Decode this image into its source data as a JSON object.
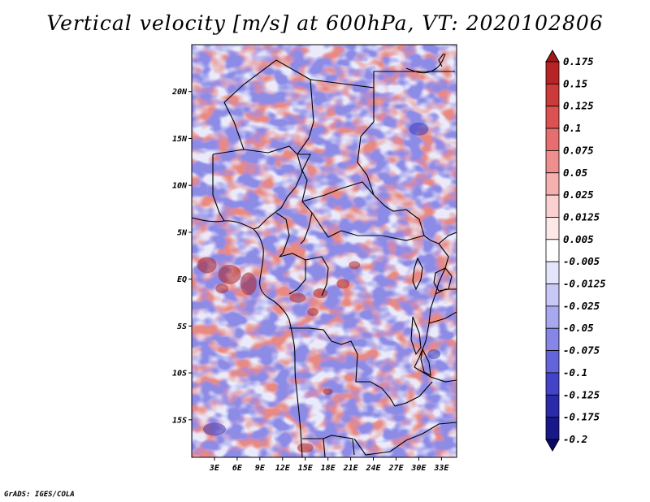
{
  "title": "Vertical velocity [m/s] at 600hPa, VT: 2020102806",
  "footer": "GrADS: IGES/COLA",
  "map": {
    "lon_range": [
      0,
      35
    ],
    "lat_range": [
      -19,
      25
    ],
    "lat_ticks": [
      {
        "lat": 20,
        "label": "20N"
      },
      {
        "lat": 15,
        "label": "15N"
      },
      {
        "lat": 10,
        "label": "10N"
      },
      {
        "lat": 5,
        "label": "5N"
      },
      {
        "lat": 0,
        "label": "EQ"
      },
      {
        "lat": -5,
        "label": "5S"
      },
      {
        "lat": -10,
        "label": "10S"
      },
      {
        "lat": -15,
        "label": "15S"
      }
    ],
    "lon_ticks": [
      {
        "lon": 3,
        "label": "3E"
      },
      {
        "lon": 6,
        "label": "6E"
      },
      {
        "lon": 9,
        "label": "9E"
      },
      {
        "lon": 12,
        "label": "12E"
      },
      {
        "lon": 15,
        "label": "15E"
      },
      {
        "lon": 18,
        "label": "18E"
      },
      {
        "lon": 21,
        "label": "21E"
      },
      {
        "lon": 24,
        "label": "24E"
      },
      {
        "lon": 27,
        "label": "27E"
      },
      {
        "lon": 30,
        "label": "30E"
      },
      {
        "lon": 33,
        "label": "33E"
      }
    ]
  },
  "colorbar": {
    "labels": [
      "0.175",
      "0.15",
      "0.125",
      "0.1",
      "0.075",
      "0.05",
      "0.025",
      "0.0125",
      "0.005",
      "-0.005",
      "-0.0125",
      "-0.025",
      "-0.05",
      "-0.075",
      "-0.1",
      "-0.125",
      "-0.175",
      "-0.2"
    ],
    "colors": [
      "#a01818",
      "#b82424",
      "#cc3a3a",
      "#dc5252",
      "#e66e6e",
      "#ee8e8e",
      "#f5b0b0",
      "#fad0d0",
      "#fde8e8",
      "#ffffff",
      "#e4e4fb",
      "#c8c8f6",
      "#a8a8ef",
      "#8686e6",
      "#6464da",
      "#4444c8",
      "#2a2aaa",
      "#181888",
      "#0a0a6a"
    ]
  },
  "field_colors": {
    "positive": "#e8857c",
    "negative": "#8787e6",
    "strong_positive": "#b02020",
    "strong_negative": "#3a3ab8"
  }
}
